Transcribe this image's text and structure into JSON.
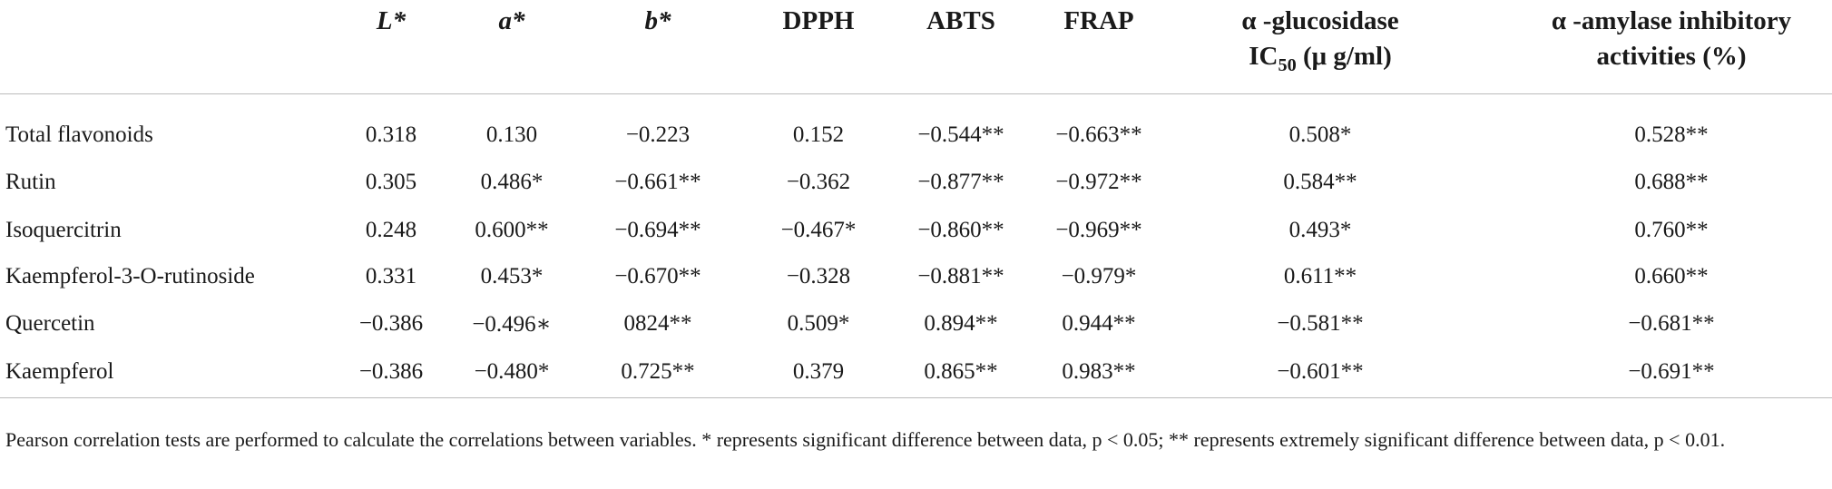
{
  "table": {
    "headers": {
      "L": "L*",
      "a": "a*",
      "b": "b*",
      "dpph": "DPPH",
      "abts": "ABTS",
      "frap": "FRAP",
      "glucosidase": {
        "line1": "α -glucosidase",
        "line2": "IC",
        "subscript": "50",
        "unit": "(μ g/ml)"
      },
      "amylase": {
        "line1": "α -amylase inhibitory",
        "line2": "activities (%)"
      }
    },
    "rows": [
      [
        "Total flavonoids",
        "0.318",
        "0.130",
        "−0.223",
        "0.152",
        "−0.544**",
        "−0.663**",
        "0.508*",
        "0.528**"
      ],
      [
        "Rutin",
        "0.305",
        "0.486*",
        "−0.661**",
        "−0.362",
        "−0.877**",
        "−0.972**",
        "0.584**",
        "0.688**"
      ],
      [
        "Isoquercitrin",
        "0.248",
        "0.600**",
        "−0.694**",
        "−0.467*",
        "−0.860**",
        "−0.969**",
        "0.493*",
        "0.760**"
      ],
      [
        "Kaempferol-3-O-rutinoside",
        "0.331",
        "0.453*",
        "−0.670**",
        "−0.328",
        "−0.881**",
        "−0.979*",
        "0.611**",
        "0.660**"
      ],
      [
        "Quercetin",
        "−0.386",
        "−0.496∗",
        "0824**",
        "0.509*",
        "0.894**",
        "0.944**",
        "−0.581**",
        "−0.681**"
      ],
      [
        "Kaempferol",
        "−0.386",
        "−0.480*",
        "0.725**",
        "0.379",
        "0.865**",
        "0.983**",
        "−0.601**",
        "−0.691**"
      ]
    ],
    "footnote": "Pearson correlation tests are performed to calculate the correlations between variables. * represents significant difference between data, p < 0.05; ** represents extremely significant difference between data, p < 0.01."
  }
}
